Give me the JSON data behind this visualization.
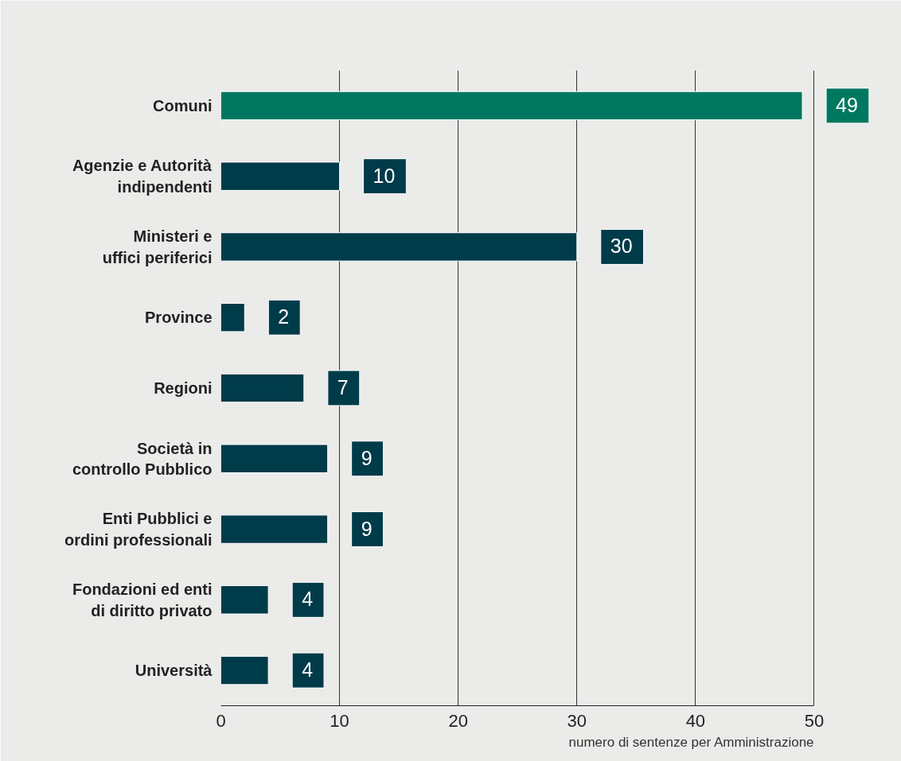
{
  "chart_data": {
    "type": "bar",
    "orientation": "horizontal",
    "categories": [
      "Comuni",
      "Agenzie e Autorità\nindipendenti",
      "Ministeri e\nuffici periferici",
      "Province",
      "Regioni",
      "Società in\ncontrollo Pubblico",
      "Enti Pubblici e\nordini professionali",
      "Fondazioni ed enti\ndi diritto privato",
      "Università"
    ],
    "values": [
      49,
      10,
      30,
      2,
      7,
      9,
      9,
      4,
      4
    ],
    "colors": [
      "#00785f",
      "#003b4a",
      "#003b4a",
      "#003b4a",
      "#003b4a",
      "#003b4a",
      "#003b4a",
      "#003b4a",
      "#003b4a"
    ],
    "xlim": [
      0,
      50
    ],
    "xticks": [
      0,
      10,
      20,
      30,
      40,
      50
    ],
    "xlabel": "numero di sentenze per Amministrazione",
    "grid": "x",
    "data_labels": true
  }
}
